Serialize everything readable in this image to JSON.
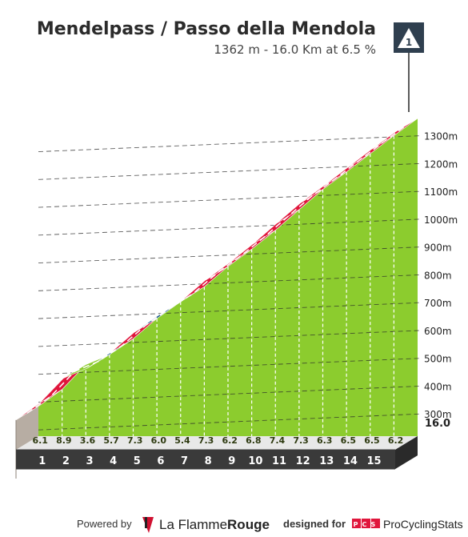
{
  "header": {
    "title": "Mendelpass / Passo della Mendola",
    "subtitle": "1362 m - 16.0 Km at 6.5 %",
    "badge": "1"
  },
  "chart_data": {
    "type": "area",
    "title": "Mendelpass / Passo della Mendola",
    "subtitle": "1362 m - 16.0 Km at 6.5 %",
    "xlabel": "",
    "ylabel": "",
    "x_unit": "km",
    "y_unit": "m",
    "xlim": [
      0,
      16
    ],
    "ylim": [
      220,
      1362
    ],
    "distance_total": "16.0",
    "summit_altitude_m": 1362,
    "km_labels": [
      "1",
      "2",
      "3",
      "4",
      "5",
      "6",
      "7",
      "8",
      "9",
      "10",
      "11",
      "12",
      "13",
      "14",
      "15"
    ],
    "gradients": [
      "6.1",
      "8.9",
      "3.6",
      "5.7",
      "7.3",
      "6.0",
      "5.4",
      "7.3",
      "6.2",
      "6.8",
      "7.4",
      "7.3",
      "6.3",
      "6.5",
      "6.5",
      "6.2"
    ],
    "y_ticks": [
      {
        "value": 300,
        "label": "300m"
      },
      {
        "value": 400,
        "label": "400m"
      },
      {
        "value": 500,
        "label": "500m"
      },
      {
        "value": 600,
        "label": "600m"
      },
      {
        "value": 700,
        "label": "700m"
      },
      {
        "value": 800,
        "label": "800m"
      },
      {
        "value": 900,
        "label": "900m"
      },
      {
        "value": 1000,
        "label": "1000m"
      },
      {
        "value": 1100,
        "label": "1100m"
      },
      {
        "value": 1200,
        "label": "1200m"
      },
      {
        "value": 1300,
        "label": "1300m"
      }
    ],
    "gradient_colors": {
      "green": "#8ccc2e",
      "blue": "#1f5e8c",
      "red": "#e0163c",
      "fill": "#8ccc2e",
      "base": "#3a3a3a"
    },
    "segment_color_classes": [
      "red",
      "red",
      "green",
      "blue",
      "red",
      "blue",
      "red",
      "red",
      "red",
      "red",
      "red",
      "red",
      "red",
      "red",
      "red",
      "red"
    ],
    "grid": true,
    "legend": "none"
  },
  "footer": {
    "powered_by": "Powered by",
    "brand_light": "La Flamme",
    "brand_bold": "Rouge",
    "designed_for": "designed for",
    "pcs_badge": "PCS",
    "pcs_name": "ProCyclingStats"
  }
}
